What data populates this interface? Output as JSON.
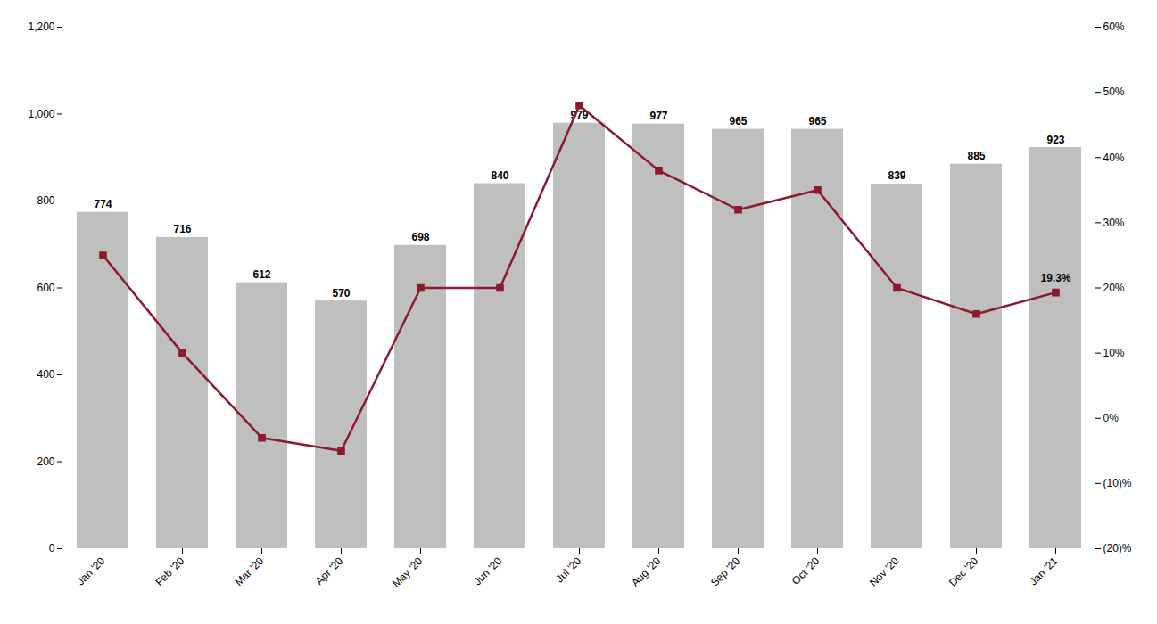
{
  "chart_data": {
    "type": "bar",
    "categories": [
      "Jan '20",
      "Feb '20",
      "Mar '20",
      "Apr '20",
      "May '20",
      "Jun '20",
      "Jul '20",
      "Aug '20",
      "Sep '20",
      "Oct '20",
      "Nov '20",
      "Dec '20",
      "Jan '21"
    ],
    "series": [
      {
        "type": "bar",
        "color": "#c0bfbf",
        "data_labels": true,
        "values": [
          774,
          716,
          612,
          570,
          698,
          840,
          979,
          977,
          965,
          965,
          839,
          885,
          923
        ]
      },
      {
        "type": "line",
        "axis": "y2",
        "color": "#8b1a2e",
        "marker": "square",
        "values": [
          25.0,
          10.0,
          -3.0,
          -5.0,
          20.0,
          20.0,
          48.0,
          38.0,
          32.0,
          35.0,
          20.0,
          16.0,
          19.3
        ]
      }
    ],
    "annotations": [
      {
        "text": "19.3%",
        "category": "Jan '21",
        "value": 19.3,
        "axis": "y2"
      }
    ],
    "ylim": [
      0,
      1200
    ],
    "yticks": [
      0,
      200,
      400,
      600,
      800,
      {
        "value": 1000,
        "label": "1,000"
      },
      {
        "value": 1200,
        "label": "1,200"
      }
    ],
    "y2lim": [
      -20,
      60
    ],
    "y2ticks": [
      {
        "value": -20,
        "label": "(20)%"
      },
      {
        "value": -10,
        "label": "(10)%"
      },
      {
        "value": 0,
        "label": "0%"
      },
      {
        "value": 10,
        "label": "10%"
      },
      {
        "value": 20,
        "label": "20%"
      },
      {
        "value": 30,
        "label": "30%"
      },
      {
        "value": 40,
        "label": "40%"
      },
      {
        "value": 50,
        "label": "50%"
      },
      {
        "value": 60,
        "label": "60%"
      }
    ],
    "grid": false
  }
}
